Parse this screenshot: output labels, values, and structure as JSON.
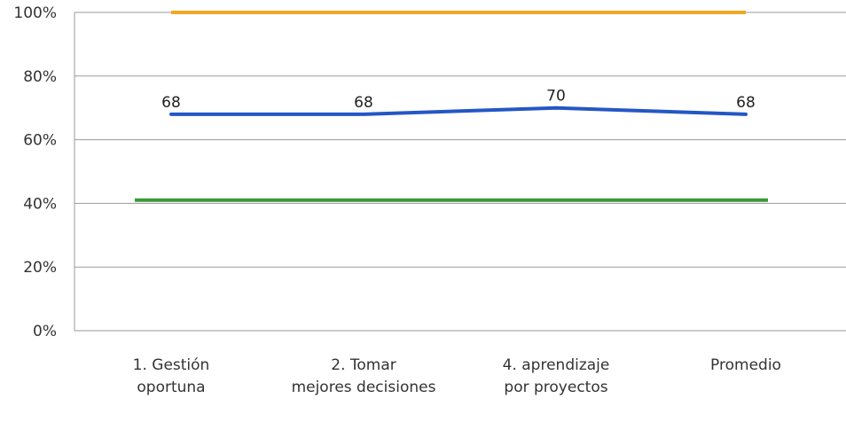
{
  "chart_data": {
    "type": "line",
    "categories": [
      [
        "1. Gestión",
        "oportuna"
      ],
      [
        "2. Tomar",
        "mejores decisiones"
      ],
      [
        "4. aprendizaje",
        "por proyectos"
      ],
      [
        "Promedio"
      ]
    ],
    "y_ticks": [
      "0%",
      "20%",
      "40%",
      "60%",
      "80%",
      "100%"
    ],
    "ylim": [
      0,
      100
    ],
    "grid": true,
    "legend": "none",
    "series": [
      {
        "values": [
          68,
          68,
          70,
          68
        ],
        "data_labels": [
          "68",
          "68",
          "70",
          "68"
        ],
        "color": "#2457c5"
      }
    ],
    "reference_lines": [
      {
        "value": 100,
        "color": "#f0a823"
      },
      {
        "value": 41,
        "color": "#3a9a3a"
      }
    ]
  }
}
